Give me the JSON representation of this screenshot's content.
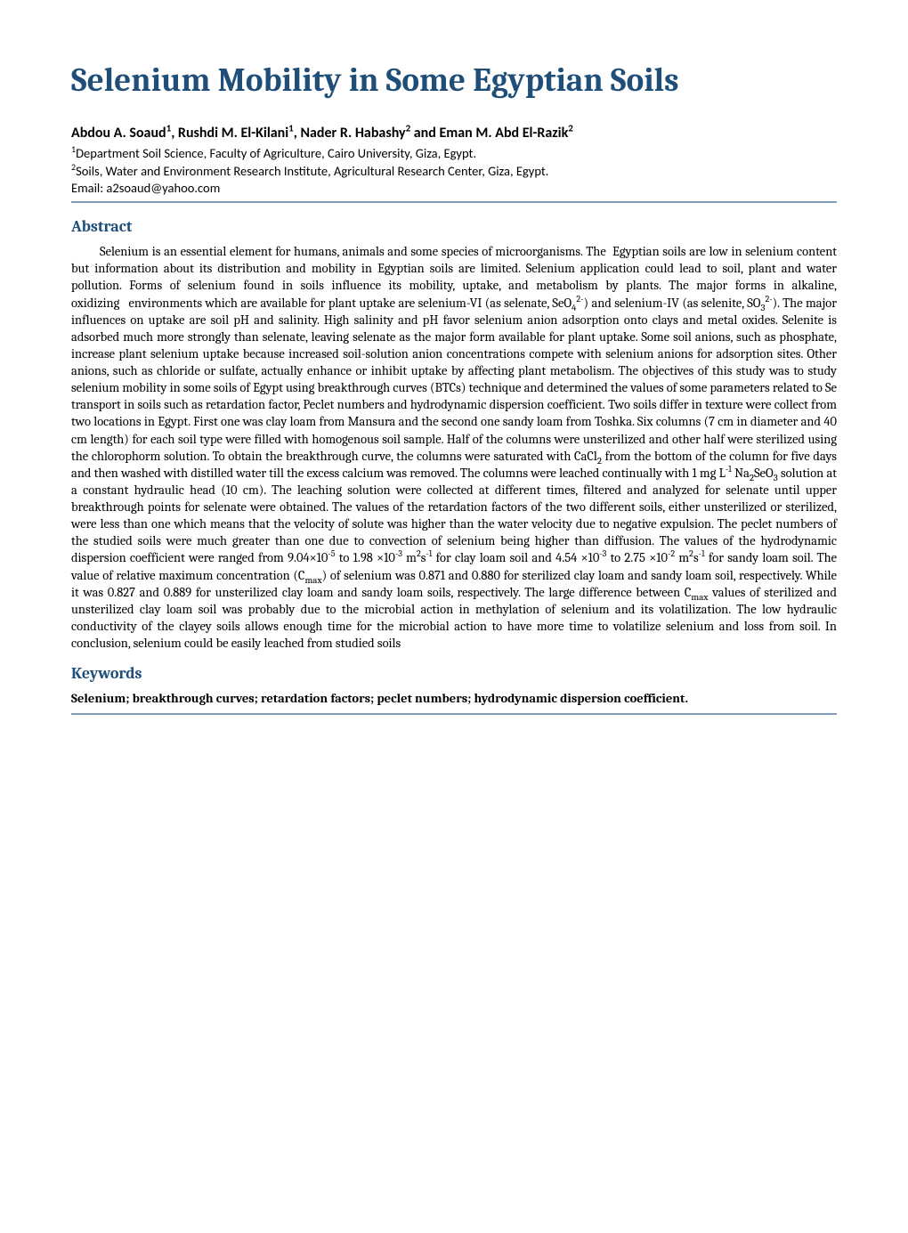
{
  "title": "Selenium Mobility in Some Egyptian Soils",
  "authors_html": "Abdou A. Soaud<sup>1</sup>, Rushdi M. El-Kilani<sup>1</sup>, Nader R. Habashy<sup>2</sup> and Eman M. Abd El-Razik<sup>2</sup>",
  "affil1_html": "<sup>1</sup>Department Soil Science, Faculty of Agriculture, Cairo University, Giza, Egypt.",
  "affil2_html": "<sup>2</sup>Soils, Water and Environment Research Institute, Agricultural Research Center, Giza, Egypt.",
  "email": "Email: a2soaud@yahoo.com",
  "abstract_heading": "Abstract",
  "abstract_html": "Selenium is an essential element for humans, animals and some species of microorganisms. The&nbsp;&nbsp;Egyptian soils are low in selenium content but information about its distribution and mobility in Egyptian soils are limited. Selenium application could lead to soil, plant and water pollution. Forms of selenium found in soils influence its mobility, uptake, and metabolism by plants. The major forms in alkaline, oxidizing&nbsp;&nbsp;&nbsp;environments which are available for plant uptake are selenium-VI (as selenate, SeO<sub>4</sub><sup>2-</sup>) and selenium-IV (as selenite, SO<sub>3</sub><sup>2-</sup>). The major influences on uptake are soil pH and salinity. High salinity and pH favor selenium anion adsorption onto clays and metal oxides. Selenite is adsorbed much more strongly than selenate, leaving selenate as the major form available for plant uptake. Some soil anions, such as phosphate, increase plant selenium uptake because increased soil-solution anion concentrations compete with selenium anions for adsorption sites. Other anions, such as chloride or sulfate, actually enhance or inhibit uptake by affecting plant metabolism. The objectives of this study was to study selenium mobility in some soils of Egypt using breakthrough curves (BTCs) technique and determined the values of some parameters related to Se transport in soils such as retardation factor, Peclet numbers and hydrodynamic dispersion coefficient.&nbsp;Two soils differ in texture were collect from two locations in Egypt. First one was clay loam from Mansura and the second one sandy loam from Toshka. Six columns (7 cm in diameter and 40 cm length) for each soil type were filled with homogenous soil sample. Half of the columns were unsterilized and other half were sterilized using the chlorophorm solution. To obtain the breakthrough curve, the columns were saturated with CaCl<sub>2</sub> from the bottom of the column for five days and then washed with distilled water till the excess calcium was removed. The columns were leached continually with 1 mg L<sup>-1</sup> Na<sub>2</sub>SeO<sub>3</sub> solution at a constant hydraulic head (10 cm). The leaching solution were collected at different times, filtered and analyzed for selenate until upper breakthrough points for selenate were obtained. The values of the retardation factors of the two different soils, either unsterilized or sterilized, were less than one which means that the velocity of solute was higher than the water velocity due to negative expulsion. The peclet numbers of the studied soils were much greater than one due to convection of selenium being higher than diffusion. The values of the hydrodynamic dispersion coefficient were ranged from 9.04×10<sup>-5</sup> to 1.98 ×10<sup>-3</sup> m<sup>2</sup>s<sup>-1</sup> for clay loam soil and 4.54 ×10<sup>-3</sup> to 2.75 ×10<sup>-2</sup> m<sup>2</sup>s<sup>-1</sup> for sandy loam soil. The value of relative maximum concentration (C<sub>max</sub>) of selenium was 0.871 and 0.880 for sterilized clay loam and sandy loam soil, respectively. While it was 0.827 and 0.889 for unsterilized clay loam and sandy loam soils, respectively. The large difference between C<sub>max</sub> values of sterilized and unsterilized clay loam soil was probably due to the microbial action in methylation of selenium and its volatilization. The low hydraulic conductivity of the clayey soils allows enough time for the microbial action to have more time to volatilize selenium and loss from soil. In conclusion, selenium could be easily leached from studied soils",
  "keywords_heading": "Keywords",
  "keywords": "Selenium; breakthrough curves; retardation factors; peclet numbers; hydrodynamic dispersion coefficient.",
  "colors": {
    "heading": "#1f4e79",
    "rule": "#7f9db9",
    "text": "#000000",
    "background": "#ffffff"
  }
}
